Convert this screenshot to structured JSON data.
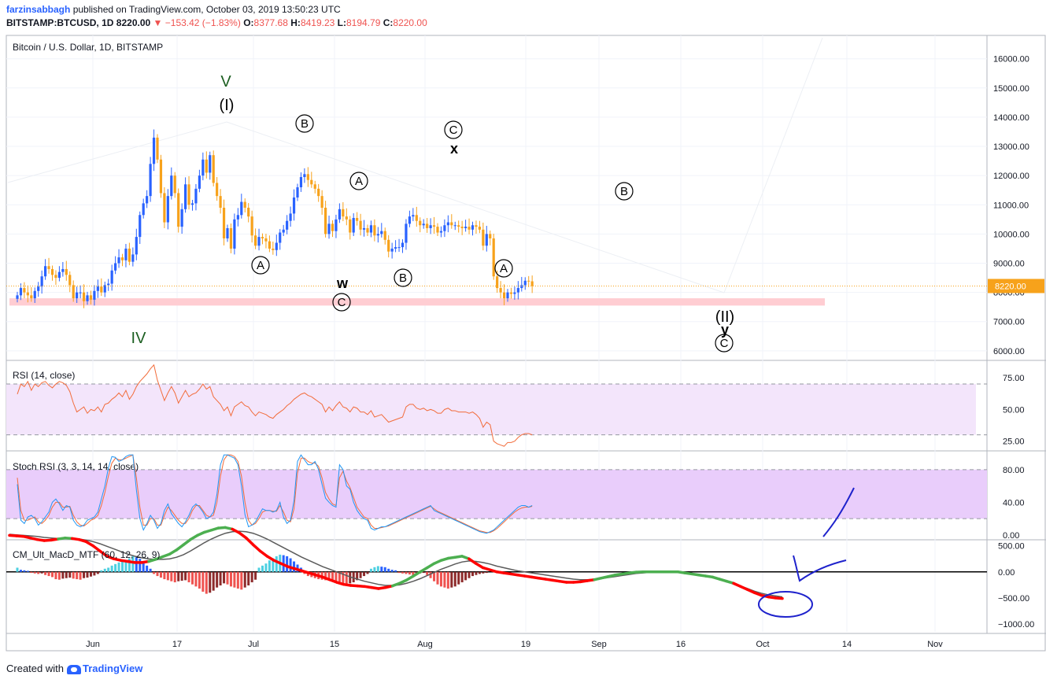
{
  "header": {
    "user": "farzinsabbagh",
    "published_text": "published on TradingView.com, October 03, 2019 13:50:23 UTC",
    "symbol": "BITSTAMP:BTCUSD, 1D",
    "last": "8220.00",
    "change": "−153.42 (−1.83%)",
    "open_label": "O:",
    "open": "8377.68",
    "high_label": "H:",
    "high": "8419.23",
    "low_label": "L:",
    "low": "8194.79",
    "close_label": "C:",
    "close": "8220.00"
  },
  "footer": {
    "created_with": "Created with",
    "brand": "TradingView"
  },
  "colors": {
    "up": "#2962ff",
    "down": "#f7a21b",
    "rsi": "#f26c3b",
    "stoch_k": "#2196f3",
    "stoch_d": "#f26c3b",
    "macd_red": "#ff0000",
    "macd_green": "#4caf50",
    "signal": "#5b5b5b",
    "support_zone": "#ffcdd2",
    "drawing": "#1e22cc"
  },
  "chart_data": [
    {
      "type": "candlestick",
      "title": "Bitcoin / U.S. Dollar, 1D, BITSTAMP",
      "ylim": [
        5700,
        16800
      ],
      "y_ticks": [
        "16000.00",
        "15000.00",
        "14000.00",
        "13000.00",
        "12000.00",
        "11000.00",
        "10000.00",
        "9000.00",
        "8000.00",
        "7000.00",
        "6000.00"
      ],
      "last_price_label": "8220.00",
      "last_price": 8220,
      "x_labels": [
        "Jun",
        "17",
        "Jul",
        "15",
        "Aug",
        "19",
        "Sep",
        "16",
        "Oct",
        "14",
        "Nov"
      ],
      "support_zone": [
        7550,
        7800
      ],
      "close": [
        7900,
        8150,
        8000,
        7900,
        7800,
        8050,
        8200,
        8550,
        8900,
        8800,
        8600,
        8500,
        8700,
        8800,
        8600,
        8250,
        7800,
        8000,
        8000,
        7700,
        7900,
        7750,
        8050,
        8200,
        8000,
        8250,
        8300,
        8750,
        9000,
        9200,
        9100,
        9500,
        9050,
        9300,
        9900,
        10650,
        11050,
        11300,
        12400,
        13300,
        12550,
        11400,
        10400,
        11300,
        12000,
        11400,
        10250,
        10850,
        11700,
        11000,
        11050,
        11550,
        12000,
        12550,
        12100,
        12700,
        11750,
        11300,
        10900,
        9850,
        10200,
        9500,
        10500,
        10650,
        11100,
        10900,
        10600,
        9950,
        9600,
        9900,
        9850,
        9750,
        9500,
        9450,
        9700,
        10050,
        10150,
        10450,
        10700,
        11250,
        11600,
        11950,
        12050,
        11850,
        11700,
        11550,
        11300,
        10900,
        10000,
        10350,
        10100,
        10500,
        10850,
        10600,
        10500,
        10050,
        10550,
        10450,
        10150,
        10200,
        10050,
        10300,
        9950,
        10000,
        10100,
        9800,
        9400,
        9500,
        9550,
        9550,
        9700,
        10350,
        10600,
        10650,
        10450,
        10300,
        10350,
        10200,
        10300,
        10250,
        10050,
        10100,
        10300,
        10400,
        10300,
        10300,
        10250,
        10200,
        10250,
        10150,
        10300,
        10250,
        10150,
        9600,
        10000,
        9850,
        8550,
        8150,
        8000,
        7800,
        8000,
        7950,
        8000,
        8150,
        8250,
        8400,
        8380,
        8220
      ],
      "annotations": [
        "V",
        "(I)",
        "B",
        "A",
        "A",
        "C",
        "x",
        "w",
        "C",
        "B",
        "A",
        "B",
        "IV",
        "(II)",
        "y",
        "C"
      ]
    },
    {
      "type": "line",
      "title": "RSI (14, close)",
      "ylim": [
        18,
        88
      ],
      "y_ticks": [
        "75.00",
        "50.00",
        "25.00"
      ],
      "bands": [
        30,
        70
      ],
      "values": [
        62,
        70,
        68,
        72,
        65,
        70,
        68,
        71,
        72,
        69,
        67,
        70,
        72,
        71,
        69,
        64,
        55,
        48,
        50,
        52,
        47,
        50,
        49,
        52,
        48,
        54,
        55,
        58,
        60,
        63,
        60,
        65,
        58,
        62,
        68,
        72,
        75,
        78,
        82,
        85,
        73,
        65,
        57,
        63,
        68,
        63,
        55,
        60,
        65,
        60,
        62,
        63,
        66,
        70,
        66,
        68,
        60,
        57,
        54,
        49,
        52,
        45,
        52,
        54,
        56,
        53,
        52,
        48,
        45,
        48,
        47,
        46,
        44,
        43,
        46,
        48,
        50,
        53,
        55,
        58,
        60,
        62,
        63,
        61,
        60,
        58,
        56,
        54,
        48,
        52,
        49,
        53,
        56,
        52,
        51,
        48,
        52,
        51,
        48,
        48,
        46,
        49,
        44,
        45,
        46,
        43,
        40,
        41,
        42,
        43,
        44,
        52,
        54,
        54,
        51,
        50,
        51,
        49,
        50,
        49,
        47,
        47,
        50,
        51,
        49,
        49,
        48,
        48,
        48,
        47,
        48,
        46,
        43,
        36,
        40,
        38,
        25,
        23,
        22,
        21,
        24,
        24,
        25,
        28,
        30,
        31,
        31,
        30
      ]
    },
    {
      "type": "line",
      "title": "Stoch RSI (3, 3, 14, 14, close)",
      "ylim": [
        -5,
        102
      ],
      "y_ticks": [
        "80.00",
        "40.00",
        "0.00"
      ],
      "bands": [
        20,
        80
      ],
      "series": [
        {
          "values": [
            62,
            18,
            14,
            22,
            24,
            20,
            12,
            16,
            22,
            28,
            40,
            44,
            38,
            30,
            36,
            34,
            18,
            12,
            10,
            12,
            18,
            20,
            22,
            28,
            44,
            60,
            82,
            96,
            95,
            90,
            92,
            96,
            98,
            98,
            55,
            20,
            6,
            14,
            24,
            18,
            8,
            14,
            30,
            38,
            26,
            20,
            14,
            10,
            16,
            24,
            34,
            38,
            34,
            28,
            20,
            22,
            28,
            50,
            86,
            98,
            98,
            96,
            94,
            86,
            60,
            25,
            10,
            12,
            16,
            24,
            32,
            30,
            30,
            28,
            30,
            40,
            22,
            14,
            18,
            42,
            90,
            98,
            92,
            86,
            86,
            90,
            80,
            62,
            45,
            40,
            36,
            34,
            86,
            80,
            60,
            56,
            40,
            30,
            24,
            20,
            18,
            8,
            6,
            8,
            10,
            10,
            12,
            14,
            16,
            18,
            20,
            22,
            24,
            26,
            28,
            30,
            32,
            34,
            36,
            30,
            28,
            26,
            24,
            22,
            20,
            18,
            16,
            14,
            12,
            10,
            8,
            6,
            4,
            3,
            2,
            4,
            6,
            10,
            14,
            18,
            22,
            26,
            30,
            34,
            36,
            36,
            34,
            36
          ]
        },
        {
          "values": [
            70,
            30,
            18,
            18,
            20,
            22,
            16,
            14,
            18,
            24,
            34,
            40,
            40,
            34,
            34,
            35,
            24,
            16,
            12,
            11,
            14,
            18,
            20,
            24,
            36,
            52,
            72,
            88,
            94,
            92,
            92,
            94,
            96,
            98,
            70,
            34,
            12,
            12,
            20,
            20,
            12,
            12,
            24,
            34,
            30,
            24,
            18,
            14,
            14,
            20,
            30,
            36,
            36,
            30,
            24,
            22,
            24,
            40,
            72,
            92,
            98,
            98,
            96,
            90,
            72,
            40,
            18,
            12,
            14,
            20,
            28,
            30,
            30,
            29,
            29,
            36,
            28,
            18,
            16,
            32,
            76,
            94,
            94,
            90,
            88,
            88,
            84,
            70,
            52,
            44,
            38,
            36,
            70,
            78,
            66,
            58,
            46,
            34,
            28,
            22,
            20,
            12,
            8,
            8,
            9,
            10,
            11,
            13,
            15,
            17,
            19,
            21,
            23,
            25,
            27,
            29,
            31,
            33,
            35,
            32,
            29,
            27,
            25,
            23,
            21,
            19,
            17,
            15,
            13,
            11,
            9,
            7,
            5,
            4,
            3,
            3,
            5,
            8,
            12,
            16,
            20,
            24,
            28,
            31,
            33,
            34,
            34,
            35
          ]
        }
      ]
    },
    {
      "type": "bar",
      "title": "CM_Ult_MacD_MTF (60, 12, 26, 9)",
      "ylim": [
        -1150,
        600
      ],
      "y_ticks": [
        "500.00",
        "0.00",
        "−500.00",
        "−1000.00"
      ],
      "histogram": [
        80,
        40,
        30,
        20,
        -20,
        -30,
        -40,
        -30,
        -60,
        -80,
        -100,
        -140,
        -150,
        -130,
        -120,
        -110,
        -130,
        -140,
        -150,
        -120,
        -110,
        -90,
        -70,
        -40,
        30,
        60,
        80,
        120,
        150,
        180,
        200,
        230,
        260,
        300,
        280,
        250,
        200,
        120,
        60,
        -40,
        -80,
        -110,
        -140,
        -160,
        -180,
        -200,
        -180,
        -170,
        -160,
        -200,
        -240,
        -280,
        -320,
        -380,
        -420,
        -400,
        -360,
        -300,
        -260,
        -220,
        -240,
        -280,
        -300,
        -320,
        -340,
        -300,
        -260,
        -200,
        -150,
        80,
        120,
        160,
        220,
        260,
        300,
        330,
        320,
        300,
        260,
        200,
        140,
        80,
        -40,
        -80,
        -100,
        -120,
        -140,
        -150,
        -160,
        -170,
        -180,
        -200,
        -220,
        -240,
        -250,
        -220,
        -200,
        -160,
        -120,
        -80,
        -40,
        60,
        90,
        110,
        100,
        90,
        60,
        40,
        30,
        -20,
        -30,
        -40,
        -50,
        -60,
        -40,
        -30,
        -20,
        -60,
        -120,
        -180,
        -240,
        -280,
        -300,
        -320,
        -300,
        -280,
        -240,
        -200,
        -160,
        -120,
        -80,
        -60,
        -40,
        -30,
        -20
      ],
      "series": [
        {
          "values": [
            700,
            690,
            680,
            650,
            620,
            600,
            610,
            630,
            650,
            640,
            620,
            580,
            500,
            400,
            300,
            250,
            220,
            200,
            180,
            180,
            200,
            240,
            290,
            340,
            420,
            520,
            620,
            700,
            760,
            800,
            840,
            850,
            820,
            750,
            650,
            520,
            400,
            300,
            220,
            160,
            100,
            60,
            20,
            -20,
            -60,
            -100,
            -150,
            -200,
            -240,
            -260,
            -270,
            -280,
            -300,
            -320,
            -300,
            -270,
            -220,
            -160,
            -80,
            0,
            80,
            160,
            220,
            260,
            280,
            300,
            250,
            160,
            80,
            40,
            0,
            -20,
            -40,
            -60,
            -80,
            -100,
            -120,
            -140,
            -160,
            -180,
            -200,
            -200,
            -190,
            -170,
            -150,
            -120,
            -90,
            -60,
            -40,
            -20,
            -5,
            0,
            0,
            0,
            0,
            0,
            0,
            -20,
            -40,
            -60,
            -80,
            -100,
            -140,
            -180,
            -220,
            -280,
            -340,
            -400,
            -450,
            -480,
            -500,
            -510
          ]
        },
        {
          "values": [
            720,
            710,
            700,
            690,
            680,
            660,
            650,
            640,
            640,
            640,
            630,
            610,
            580,
            540,
            490,
            440,
            390,
            340,
            300,
            270,
            250,
            240,
            240,
            250,
            280,
            330,
            400,
            480,
            560,
            630,
            690,
            740,
            770,
            780,
            770,
            740,
            690,
            630,
            560,
            490,
            420,
            350,
            280,
            220,
            160,
            100,
            50,
            0,
            -50,
            -100,
            -140,
            -180,
            -210,
            -240,
            -260,
            -260,
            -250,
            -220,
            -180,
            -130,
            -70,
            -10,
            50,
            100,
            150,
            190,
            210,
            200,
            180,
            150,
            110,
            80,
            50,
            20,
            0,
            -20,
            -40,
            -60,
            -80,
            -100,
            -120,
            -140,
            -150,
            -150,
            -140,
            -130,
            -110,
            -90,
            -70,
            -50,
            -30,
            -20,
            -10,
            -5,
            0,
            0,
            -10,
            -20,
            -40,
            -60,
            -80,
            -110,
            -140,
            -180,
            -220,
            -270,
            -320,
            -370,
            -410,
            -440,
            -460,
            -480
          ]
        }
      ]
    }
  ]
}
